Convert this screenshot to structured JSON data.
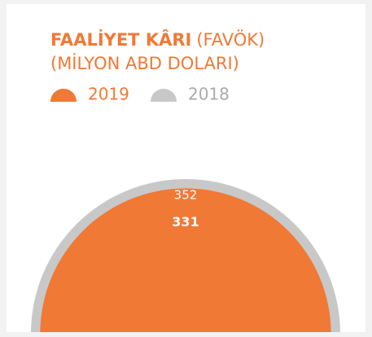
{
  "chart_data": {
    "type": "semicircle",
    "title": "FAALİYET KÂRI",
    "title_note": "(FAVÖK)",
    "unit": "(MİLYON ABD DOLARI)",
    "series": [
      {
        "name": "2019",
        "color": "#f07935",
        "values": [
          331
        ]
      },
      {
        "name": "2018",
        "color": "#c8c8c8",
        "values": [
          352
        ]
      }
    ]
  }
}
